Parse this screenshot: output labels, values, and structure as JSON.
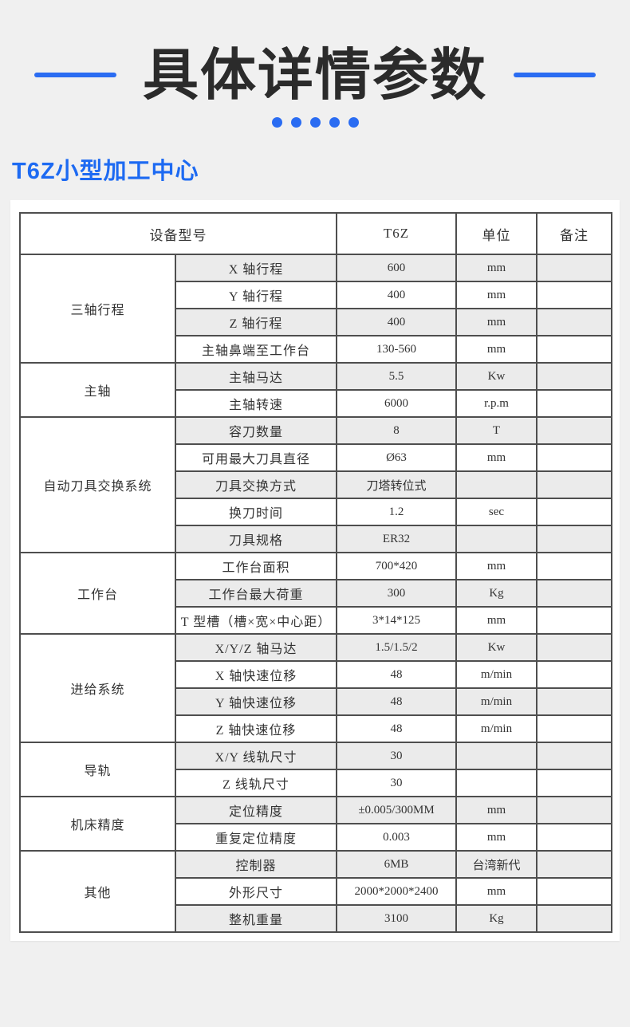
{
  "accent_blue": "#2a6cf2",
  "subtitle_blue": "#1d6af2",
  "header": {
    "title": "具体详情参数"
  },
  "subtitle": {
    "text": "T6Z小型加工中心"
  },
  "table": {
    "columns": [
      "设备型号",
      "T6Z",
      "单位",
      "备注"
    ],
    "groups": [
      {
        "category": "三轴行程",
        "rows": [
          [
            "X 轴行程",
            "600",
            "mm",
            ""
          ],
          [
            "Y 轴行程",
            "400",
            "mm",
            ""
          ],
          [
            "Z 轴行程",
            "400",
            "mm",
            ""
          ],
          [
            "主轴鼻端至工作台",
            "130-560",
            "mm",
            ""
          ]
        ]
      },
      {
        "category": "主轴",
        "rows": [
          [
            "主轴马达",
            "5.5",
            "Kw",
            ""
          ],
          [
            "主轴转速",
            "6000",
            "r.p.m",
            ""
          ]
        ]
      },
      {
        "category": "自动刀具交换系统",
        "rows": [
          [
            "容刀数量",
            "8",
            "T",
            ""
          ],
          [
            "可用最大刀具直径",
            "Ø63",
            "mm",
            ""
          ],
          [
            "刀具交换方式",
            "刀塔转位式",
            "",
            ""
          ],
          [
            "换刀时间",
            "1.2",
            "sec",
            ""
          ],
          [
            "刀具规格",
            "ER32",
            "",
            ""
          ]
        ]
      },
      {
        "category": "工作台",
        "rows": [
          [
            "工作台面积",
            "700*420",
            "mm",
            ""
          ],
          [
            "工作台最大荷重",
            "300",
            "Kg",
            ""
          ],
          [
            "T 型槽（槽×宽×中心距）",
            "3*14*125",
            "mm",
            ""
          ]
        ]
      },
      {
        "category": "进给系统",
        "rows": [
          [
            "X/Y/Z 轴马达",
            "1.5/1.5/2",
            "Kw",
            ""
          ],
          [
            "X 轴快速位移",
            "48",
            "m/min",
            ""
          ],
          [
            "Y 轴快速位移",
            "48",
            "m/min",
            ""
          ],
          [
            "Z 轴快速位移",
            "48",
            "m/min",
            ""
          ]
        ]
      },
      {
        "category": "导轨",
        "rows": [
          [
            "X/Y 线轨尺寸",
            "30",
            "",
            ""
          ],
          [
            "Z 线轨尺寸",
            "30",
            "",
            ""
          ]
        ]
      },
      {
        "category": "机床精度",
        "rows": [
          [
            "定位精度",
            "±0.005/300MM",
            "mm",
            ""
          ],
          [
            "重复定位精度",
            "0.003",
            "mm",
            ""
          ]
        ]
      },
      {
        "category": "其他",
        "rows": [
          [
            "控制器",
            "6MB",
            "台湾新代",
            ""
          ],
          [
            "外形尺寸",
            "2000*2000*2400",
            "mm",
            ""
          ],
          [
            "整机重量",
            "3100",
            "Kg",
            ""
          ]
        ]
      }
    ]
  }
}
